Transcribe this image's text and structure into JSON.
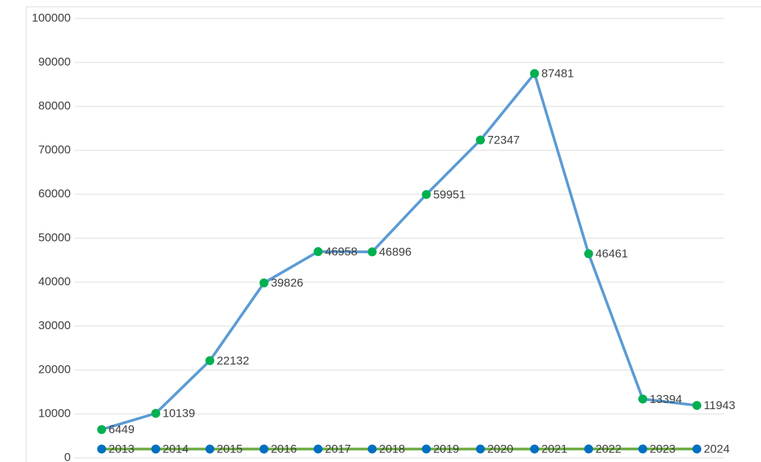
{
  "chart_data": {
    "type": "line",
    "series": [
      {
        "color": "#5b9bd5",
        "marker_color": "#00b050",
        "values": [
          6449,
          10139,
          22132,
          39826,
          46958,
          46896,
          59951,
          72347,
          87481,
          46461,
          13394,
          11943
        ]
      },
      {
        "color": "#70ad47",
        "marker_color": "#0070c0",
        "values": [
          2013,
          2014,
          2015,
          2016,
          2017,
          2018,
          2019,
          2020,
          2021,
          2022,
          2023,
          2024
        ]
      }
    ],
    "ylim": [
      0,
      100000
    ],
    "yticks": [
      0,
      10000,
      20000,
      30000,
      40000,
      50000,
      60000,
      70000,
      80000,
      90000,
      100000
    ],
    "grid": true,
    "data_labels": true
  }
}
